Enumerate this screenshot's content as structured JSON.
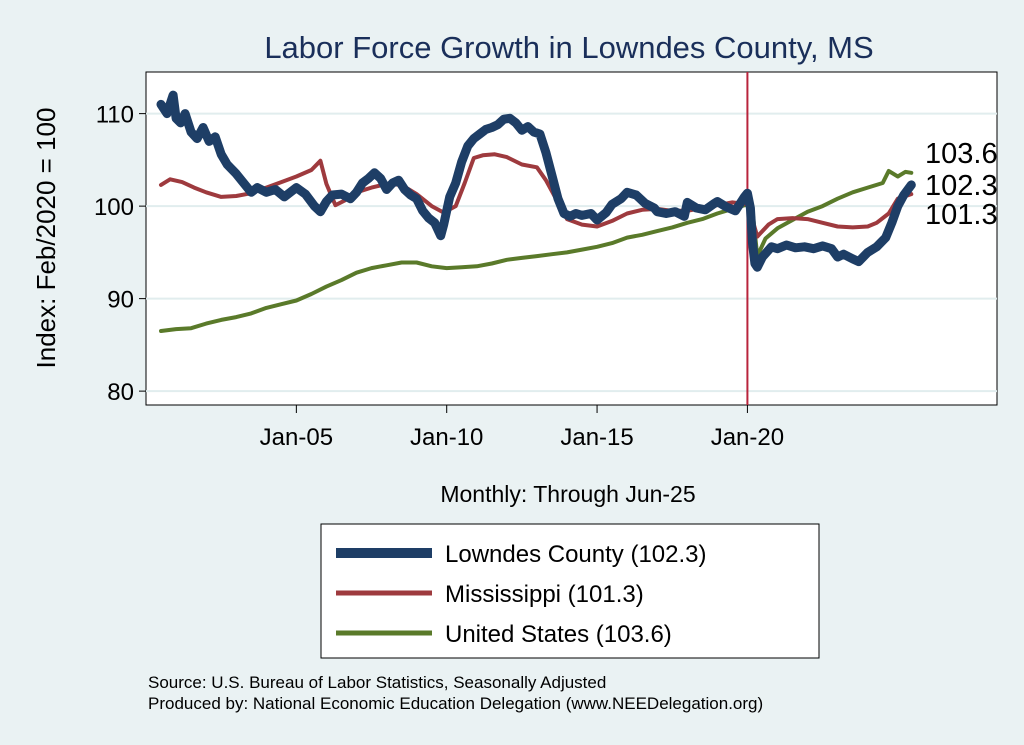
{
  "chart_data": {
    "type": "line",
    "title": "Labor Force Growth in Lowndes  County, MS",
    "xlabel": "Monthly: Through Jun-25",
    "ylabel": "Index: Feb/2020 = 100",
    "xlim": [
      2000.0,
      2028.3
    ],
    "ylim": [
      78.5,
      114.5
    ],
    "yticks": [
      80,
      90,
      100,
      110
    ],
    "xticks": [
      {
        "x": 2005,
        "label": "Jan-05"
      },
      {
        "x": 2010,
        "label": "Jan-10"
      },
      {
        "x": 2015,
        "label": "Jan-15"
      },
      {
        "x": 2020,
        "label": "Jan-20"
      }
    ],
    "grid": true,
    "reference_line": {
      "x": 2020.0,
      "color": "#b8243c"
    },
    "series": [
      {
        "name": "United States",
        "legend": "United States (103.6)",
        "color": "#5a7a2a",
        "width": 4,
        "end_value": "103.6",
        "x": [
          2000.5,
          2001.0,
          2001.5,
          2002.0,
          2002.5,
          2003.0,
          2003.5,
          2004.0,
          2004.5,
          2005.0,
          2005.5,
          2006.0,
          2006.5,
          2007.0,
          2007.5,
          2008.0,
          2008.5,
          2009.0,
          2009.5,
          2010.0,
          2010.5,
          2011.0,
          2011.5,
          2012.0,
          2012.5,
          2013.0,
          2013.5,
          2014.0,
          2014.5,
          2015.0,
          2015.5,
          2016.0,
          2016.5,
          2017.0,
          2017.5,
          2018.0,
          2018.5,
          2019.0,
          2019.5,
          2020.0,
          2020.17,
          2020.33,
          2020.6,
          2021.0,
          2021.5,
          2022.0,
          2022.5,
          2023.0,
          2023.5,
          2024.0,
          2024.5,
          2024.7,
          2025.0,
          2025.25,
          2025.45
        ],
        "values": [
          86.5,
          86.7,
          86.8,
          87.3,
          87.7,
          88.0,
          88.4,
          89.0,
          89.4,
          89.8,
          90.5,
          91.3,
          92.0,
          92.8,
          93.3,
          93.6,
          93.9,
          93.9,
          93.5,
          93.3,
          93.4,
          93.5,
          93.8,
          94.2,
          94.4,
          94.6,
          94.8,
          95.0,
          95.3,
          95.6,
          96.0,
          96.6,
          96.9,
          97.3,
          97.7,
          98.2,
          98.6,
          99.2,
          99.7,
          100.2,
          99.5,
          94.6,
          96.5,
          97.6,
          98.5,
          99.4,
          100.0,
          100.8,
          101.5,
          102.0,
          102.5,
          103.8,
          103.2,
          103.7,
          103.6
        ]
      },
      {
        "name": "Mississippi",
        "legend": "Mississippi (101.3)",
        "color": "#9e3a3e",
        "width": 4,
        "end_value": "101.3",
        "x": [
          2000.5,
          2000.8,
          2001.2,
          2001.6,
          2002.0,
          2002.5,
          2003.0,
          2003.5,
          2004.0,
          2004.5,
          2005.0,
          2005.5,
          2005.8,
          2006.0,
          2006.3,
          2006.6,
          2007.0,
          2007.5,
          2008.0,
          2008.5,
          2009.0,
          2009.5,
          2009.9,
          2010.3,
          2010.6,
          2010.9,
          2011.2,
          2011.6,
          2012.0,
          2012.5,
          2013.0,
          2013.3,
          2013.6,
          2014.0,
          2014.5,
          2015.0,
          2015.5,
          2016.0,
          2016.5,
          2017.0,
          2017.5,
          2018.0,
          2018.5,
          2019.0,
          2019.5,
          2020.0,
          2020.17,
          2020.33,
          2020.7,
          2021.0,
          2021.5,
          2022.0,
          2022.5,
          2023.0,
          2023.5,
          2024.0,
          2024.3,
          2024.7,
          2025.0,
          2025.45
        ],
        "values": [
          102.3,
          102.9,
          102.6,
          102.0,
          101.5,
          101.0,
          101.1,
          101.4,
          102.0,
          102.6,
          103.2,
          103.9,
          104.9,
          102.4,
          100.1,
          100.6,
          101.5,
          102.0,
          102.4,
          102.3,
          101.3,
          100.0,
          99.3,
          100.0,
          102.5,
          105.2,
          105.5,
          105.6,
          105.3,
          104.5,
          104.2,
          102.8,
          101.0,
          98.6,
          98.0,
          97.8,
          98.4,
          99.2,
          99.6,
          99.7,
          99.5,
          99.5,
          99.8,
          100.1,
          100.4,
          100.2,
          98.5,
          96.7,
          98.0,
          98.6,
          98.7,
          98.6,
          98.2,
          97.8,
          97.7,
          97.8,
          98.2,
          99.2,
          100.8,
          101.3
        ]
      },
      {
        "name": "Lowndes  County",
        "legend": "Lowndes  County (102.3)",
        "color": "#1e3e66",
        "width": 9,
        "end_value": "102.3",
        "x": [
          2000.5,
          2000.7,
          2000.9,
          2001.0,
          2001.15,
          2001.3,
          2001.5,
          2001.7,
          2001.9,
          2002.1,
          2002.3,
          2002.5,
          2002.7,
          2003.0,
          2003.3,
          2003.5,
          2003.7,
          2004.0,
          2004.3,
          2004.6,
          2005.0,
          2005.3,
          2005.6,
          2005.8,
          2006.0,
          2006.2,
          2006.5,
          2006.8,
          2007.0,
          2007.2,
          2007.4,
          2007.6,
          2007.8,
          2008.0,
          2008.2,
          2008.4,
          2008.6,
          2008.8,
          2009.0,
          2009.2,
          2009.4,
          2009.6,
          2009.8,
          2009.9,
          2010.1,
          2010.3,
          2010.5,
          2010.7,
          2010.9,
          2011.1,
          2011.3,
          2011.5,
          2011.7,
          2011.9,
          2012.1,
          2012.3,
          2012.5,
          2012.7,
          2012.9,
          2013.1,
          2013.3,
          2013.5,
          2013.7,
          2013.9,
          2014.1,
          2014.3,
          2014.5,
          2014.8,
          2015.0,
          2015.3,
          2015.5,
          2015.8,
          2016.0,
          2016.3,
          2016.6,
          2016.9,
          2017.0,
          2017.3,
          2017.6,
          2017.9,
          2018.0,
          2018.3,
          2018.6,
          2018.9,
          2019.0,
          2019.3,
          2019.6,
          2019.9,
          2020.0,
          2020.1,
          2020.17,
          2020.25,
          2020.33,
          2020.5,
          2020.8,
          2021.0,
          2021.3,
          2021.6,
          2021.9,
          2022.2,
          2022.5,
          2022.8,
          2023.0,
          2023.2,
          2023.5,
          2023.7,
          2024.0,
          2024.3,
          2024.6,
          2024.8,
          2025.0,
          2025.2,
          2025.45
        ],
        "values": [
          111.0,
          110.0,
          112.0,
          109.5,
          109.0,
          110.0,
          108.0,
          107.3,
          108.5,
          107.0,
          107.5,
          105.6,
          104.5,
          103.5,
          102.3,
          101.5,
          102.0,
          101.5,
          101.8,
          101.0,
          102.0,
          101.3,
          100.0,
          99.4,
          100.5,
          101.2,
          101.3,
          100.8,
          101.5,
          102.5,
          103.0,
          103.6,
          103.0,
          101.8,
          102.5,
          102.8,
          101.8,
          101.2,
          100.8,
          99.5,
          98.7,
          98.2,
          96.8,
          98.0,
          101.0,
          102.5,
          104.8,
          106.5,
          107.3,
          107.8,
          108.3,
          108.5,
          108.8,
          109.4,
          109.5,
          109.0,
          108.2,
          108.6,
          108.0,
          107.8,
          105.8,
          103.3,
          100.8,
          99.2,
          98.9,
          99.2,
          99.0,
          99.2,
          98.5,
          99.3,
          100.2,
          100.8,
          101.5,
          101.2,
          100.3,
          99.8,
          99.4,
          99.2,
          99.4,
          98.9,
          100.4,
          99.8,
          99.6,
          100.3,
          100.5,
          99.9,
          99.5,
          101.0,
          101.4,
          99.8,
          96.0,
          93.8,
          93.4,
          94.5,
          95.6,
          95.4,
          95.8,
          95.5,
          95.6,
          95.4,
          95.7,
          95.4,
          94.5,
          94.8,
          94.3,
          94.0,
          95.0,
          95.6,
          96.6,
          98.2,
          100.0,
          101.2,
          102.3
        ]
      }
    ]
  },
  "source_lines": [
    "Source: U.S. Bureau of Labor Statistics, Seasonally Adjusted",
    "Produced by: National Economic Education Delegation (www.NEEDelegation.org)"
  ],
  "colors": {
    "background": "#eaf2f3",
    "plot_background": "#ffffff",
    "grid": "#e1edee",
    "title": "#1a2f5a"
  }
}
